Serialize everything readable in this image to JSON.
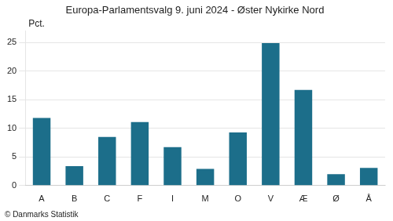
{
  "chart_data": {
    "type": "bar",
    "title": "Europa-Parlamentsvalg 9. juni 2024 - Øster Nykirke Nord",
    "ylabel": "Pct.",
    "footnote": "© Danmarks Statistik",
    "categories": [
      "A",
      "B",
      "C",
      "F",
      "I",
      "M",
      "O",
      "V",
      "Æ",
      "Ø",
      "Å"
    ],
    "values": [
      11.8,
      3.4,
      8.5,
      11.1,
      6.7,
      2.9,
      9.3,
      24.9,
      16.7,
      2.0,
      3.1
    ],
    "color": "#1c6e8a",
    "ylim": [
      0,
      27
    ],
    "yticks": [
      0,
      5,
      10,
      15,
      20,
      25
    ],
    "grid": true
  }
}
